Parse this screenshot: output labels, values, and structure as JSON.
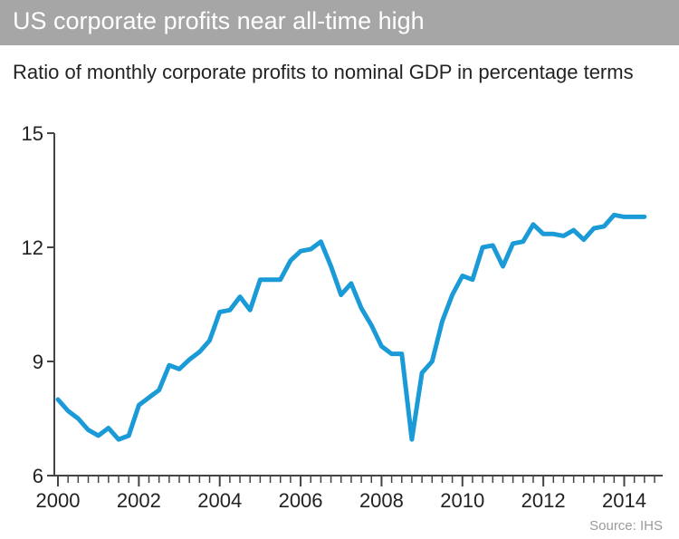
{
  "colors": {
    "title_bar": "#a6a6a6",
    "line": "#1a9ad6",
    "axis": "#444444"
  },
  "title": "US corporate profits near all-time high",
  "subtitle": "Ratio of monthly corporate profits to nominal GDP in percentage terms",
  "source": "Source: IHS",
  "chart_data": {
    "type": "line",
    "title": "US corporate profits near all-time high",
    "subtitle": "Ratio of monthly corporate profits to nominal GDP in percentage terms",
    "xlabel": "",
    "ylabel": "",
    "xlim": [
      2000,
      2014.75
    ],
    "ylim": [
      6,
      15
    ],
    "y_ticks": [
      6,
      9,
      12,
      15
    ],
    "x_ticks": [
      2000,
      2002,
      2004,
      2006,
      2008,
      2010,
      2012,
      2014
    ],
    "grid": false,
    "series": [
      {
        "x": [
          2000.0,
          2000.25,
          2000.5,
          2000.75,
          2001.0,
          2001.25,
          2001.5,
          2001.75,
          2002.0,
          2002.25,
          2002.5,
          2002.75,
          2003.0,
          2003.25,
          2003.5,
          2003.75,
          2004.0,
          2004.25,
          2004.5,
          2004.75,
          2005.0,
          2005.25,
          2005.5,
          2005.75,
          2006.0,
          2006.25,
          2006.5,
          2006.75,
          2007.0,
          2007.25,
          2007.5,
          2007.75,
          2008.0,
          2008.25,
          2008.5,
          2008.75,
          2009.0,
          2009.25,
          2009.5,
          2009.75,
          2010.0,
          2010.25,
          2010.5,
          2010.75,
          2011.0,
          2011.25,
          2011.5,
          2011.75,
          2012.0,
          2012.25,
          2012.5,
          2012.75,
          2013.0,
          2013.25,
          2013.5,
          2013.75,
          2014.0,
          2014.25,
          2014.5
        ],
        "values": [
          8.0,
          7.7,
          7.5,
          7.2,
          7.05,
          7.25,
          6.95,
          7.05,
          7.85,
          8.05,
          8.25,
          8.9,
          8.8,
          9.05,
          9.25,
          9.55,
          10.3,
          10.35,
          10.7,
          10.35,
          11.15,
          11.15,
          11.15,
          11.65,
          11.9,
          11.95,
          12.15,
          11.5,
          10.75,
          11.05,
          10.4,
          9.95,
          9.4,
          9.2,
          9.2,
          6.95,
          8.7,
          9.0,
          10.05,
          10.75,
          11.25,
          11.15,
          12.0,
          12.05,
          11.5,
          12.1,
          12.15,
          12.6,
          12.35,
          12.35,
          12.3,
          12.45,
          12.2,
          12.5,
          12.55,
          12.85,
          12.8,
          12.8,
          12.8
        ]
      }
    ]
  }
}
